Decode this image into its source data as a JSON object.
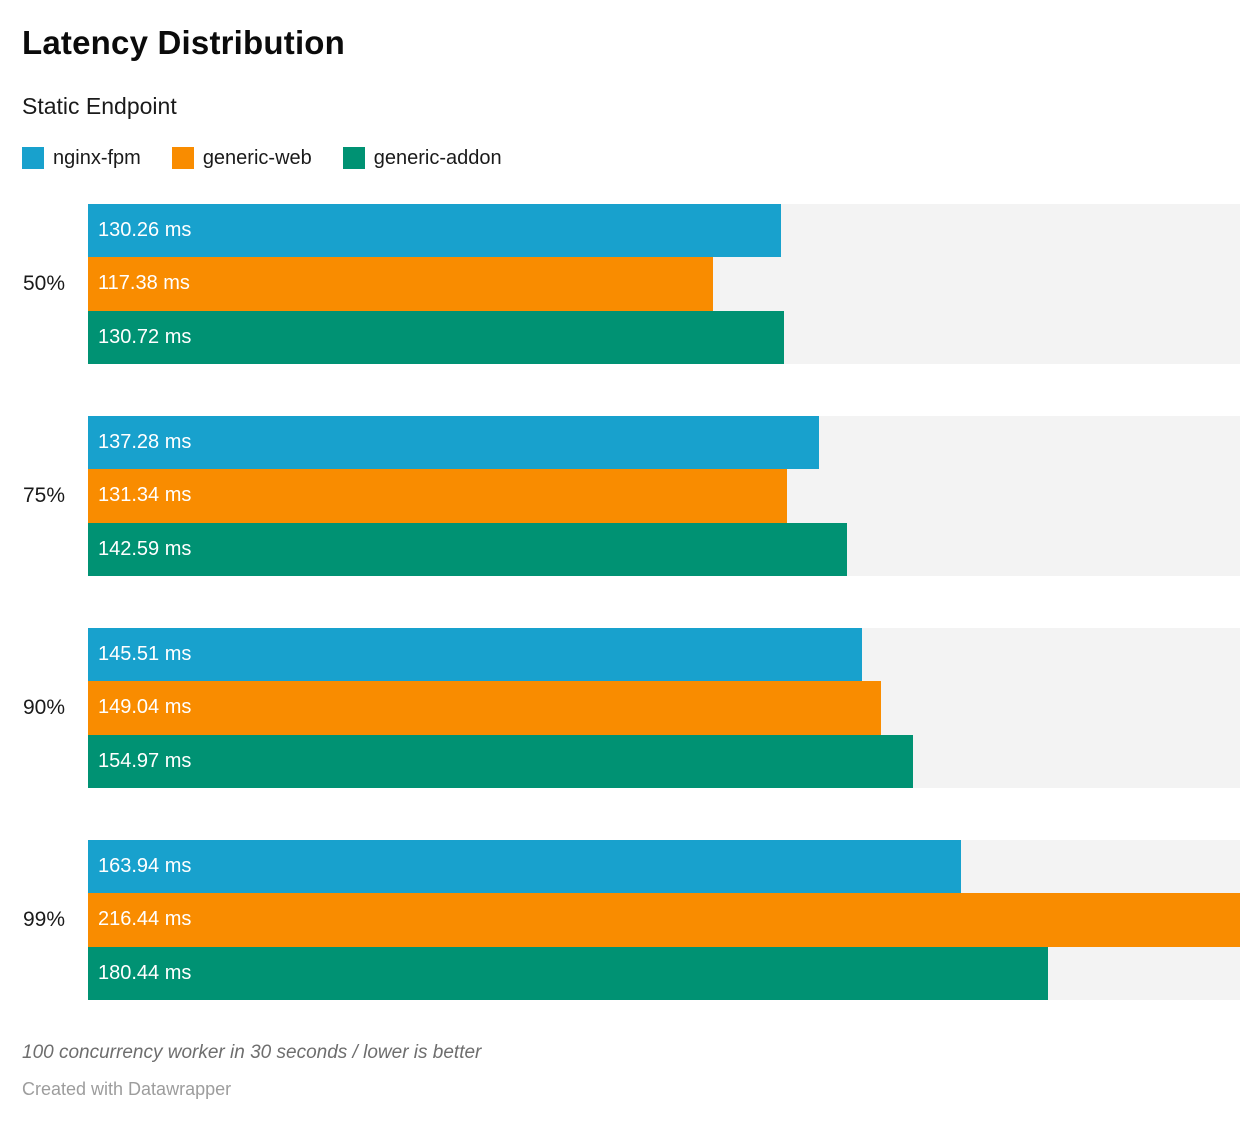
{
  "chart_data": {
    "type": "bar",
    "orientation": "horizontal",
    "title": "Latency Distribution",
    "subtitle": "Static Endpoint",
    "categories": [
      "50%",
      "75%",
      "90%",
      "99%"
    ],
    "series": [
      {
        "name": "nginx-fpm",
        "color": "#18a1cd",
        "values": [
          130.26,
          137.28,
          145.51,
          163.94
        ]
      },
      {
        "name": "generic-web",
        "color": "#f98c00",
        "values": [
          117.38,
          131.34,
          149.04,
          216.44
        ]
      },
      {
        "name": "generic-addon",
        "color": "#009273",
        "values": [
          130.72,
          142.59,
          154.97,
          180.44
        ]
      }
    ],
    "value_format": {
      "suffix": " ms",
      "decimals": 2
    },
    "xlim": [
      0,
      216.44
    ],
    "track_color": "#f3f3f3",
    "label_color_inside": "#ffffff",
    "legend_position": "top",
    "grid": false,
    "notes": "100 concurrency worker in 30 seconds / lower is better",
    "attribution": "Created with Datawrapper"
  }
}
